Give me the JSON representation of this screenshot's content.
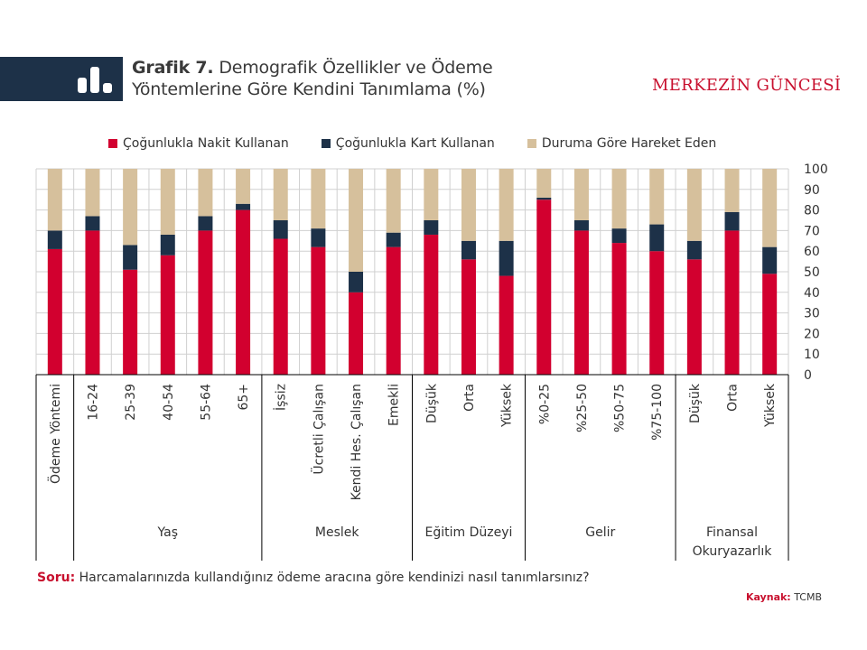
{
  "header": {
    "title_bold": "Grafik 7.",
    "title_line1": "Demografik Özellikler ve Ödeme",
    "title_line2": "Yöntemlerine Göre Kendini Tanımlama (%)",
    "brand": "MERKEZİN GÜNCESİ",
    "icon": "bar-chart-icon"
  },
  "footer": {
    "question_label": "Soru:",
    "question_text": "Harcamalarınızda kullandığınız ödeme aracına göre kendinizi nasıl tanımlarsınız?",
    "source_label": "Kaynak:",
    "source_text": "TCMB"
  },
  "colors": {
    "nakit": "#d2002f",
    "kart": "#1d3148",
    "duruma": "#d6c09c",
    "header_band": "#1d3148",
    "brand": "#c8102e",
    "grid": "#d0d0d0"
  },
  "chart_data": {
    "type": "bar",
    "stacked": true,
    "title": "Demografik Özellikler ve Ödeme Yöntemlerine Göre Kendini Tanımlama (%)",
    "xlabel": "",
    "ylabel": "",
    "ylim": [
      0,
      100
    ],
    "yticks": [
      0,
      10,
      20,
      30,
      40,
      50,
      60,
      70,
      80,
      90,
      100
    ],
    "y_axis_side": "right",
    "grid": true,
    "legend_position": "top",
    "categories": [
      "Ödeme Yöntemi",
      "16-24",
      "25-39",
      "40-54",
      "55-64",
      "65+",
      "İşsiz",
      "Ücretli Çalışan",
      "Kendi Hes. Çalışan",
      "Emekli",
      "Düşük",
      "Orta",
      "Yüksek",
      "%0-25",
      "%25-50",
      "%50-75",
      "%75-100",
      "Düşük",
      "Orta",
      "Yüksek"
    ],
    "groups": [
      {
        "label": "",
        "start": 0,
        "end": 0
      },
      {
        "label": "Yaş",
        "start": 1,
        "end": 5
      },
      {
        "label": "Meslek",
        "start": 6,
        "end": 9
      },
      {
        "label": "Eğitim Düzeyi",
        "start": 10,
        "end": 12
      },
      {
        "label": "Gelir",
        "start": 13,
        "end": 16
      },
      {
        "label": "Finansal Okuryazarlık",
        "start": 17,
        "end": 19
      }
    ],
    "series": [
      {
        "name": "Çoğunlukla Nakit Kullanan",
        "color": "#d2002f",
        "values": [
          61,
          70,
          51,
          58,
          70,
          80,
          66,
          62,
          40,
          62,
          68,
          56,
          48,
          85,
          70,
          64,
          60,
          56,
          70,
          49
        ]
      },
      {
        "name": "Çoğunlukla Kart Kullanan",
        "color": "#1d3148",
        "values": [
          9,
          7,
          12,
          10,
          7,
          3,
          9,
          9,
          10,
          7,
          7,
          9,
          17,
          1,
          5,
          7,
          13,
          9,
          9,
          13
        ]
      },
      {
        "name": "Duruma Göre Hareket Eden",
        "color": "#d6c09c",
        "values": [
          30,
          23,
          37,
          32,
          23,
          17,
          25,
          29,
          50,
          31,
          25,
          35,
          35,
          14,
          25,
          29,
          27,
          35,
          21,
          38
        ]
      }
    ]
  }
}
